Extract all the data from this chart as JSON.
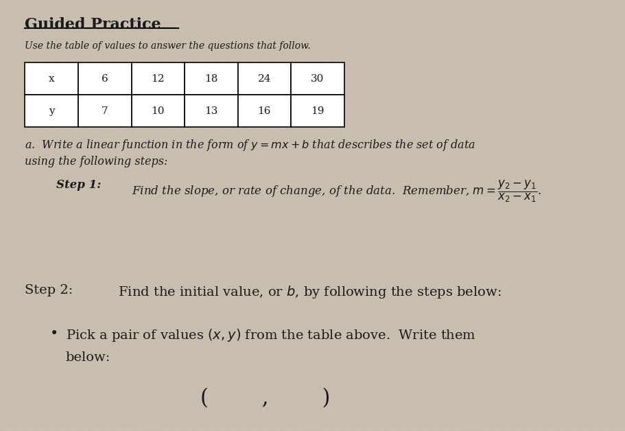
{
  "title": "Guided Practice",
  "subtitle": "Use the table of values to answer the questions that follow.",
  "table_x": [
    "x",
    "6",
    "12",
    "18",
    "24",
    "30"
  ],
  "table_y": [
    "y",
    "7",
    "10",
    "13",
    "16",
    "19"
  ],
  "bg_color": "#c8bfb0",
  "paper_color": "#ddd5c8",
  "text_color": "#1a1a1a",
  "title_fontsize": 16,
  "subtitle_fontsize": 10,
  "body_fontsize": 11.5,
  "step_fontsize": 12
}
